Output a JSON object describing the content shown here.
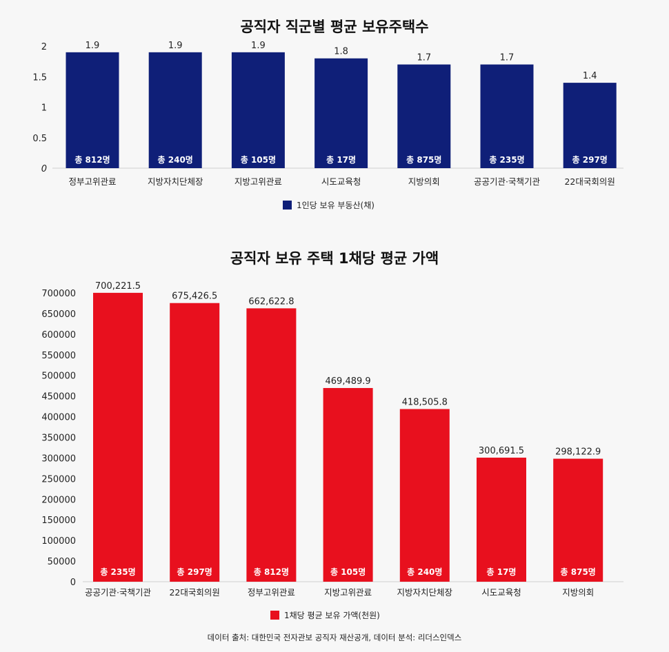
{
  "chart_data": [
    {
      "type": "bar",
      "title": "공직자 직군별 평균 보유주택수",
      "categories": [
        "정부고위관료",
        "지방자치단체장",
        "지방고위관료",
        "시도교육청",
        "지방의회",
        "공공기관·국책기관",
        "22대국회의원"
      ],
      "series": [
        {
          "name": "1인당 보유 부동산(채)",
          "values": [
            1.9,
            1.9,
            1.9,
            1.8,
            1.7,
            1.7,
            1.4
          ],
          "color": "#0f1f78"
        }
      ],
      "value_labels": [
        "1.9",
        "1.9",
        "1.9",
        "1.8",
        "1.7",
        "1.7",
        "1.4"
      ],
      "bar_labels": [
        "총 812명",
        "총 240명",
        "총 105명",
        "총 17명",
        "총 875명",
        "총 235명",
        "총 297명"
      ],
      "yticks": [
        "0",
        "0.5",
        "1",
        "1.5",
        "2"
      ],
      "ylim": [
        0,
        2
      ],
      "legend": "bottom-center",
      "grid": false
    },
    {
      "type": "bar",
      "title": "공직자 보유 주택 1채당 평균 가액",
      "categories": [
        "공공기관·국책기관",
        "22대국회의원",
        "정부고위관료",
        "지방고위관료",
        "지방자치단체장",
        "시도교육청",
        "지방의회"
      ],
      "series": [
        {
          "name": "1채당 평균 보유 가액(천원)",
          "values": [
            700221.5,
            675426.5,
            662622.8,
            469489.9,
            418505.8,
            300691.5,
            298122.9
          ],
          "color": "#e8101e"
        }
      ],
      "value_labels": [
        "700,221.5",
        "675,426.5",
        "662,622.8",
        "469,489.9",
        "418,505.8",
        "300,691.5",
        "298,122.9"
      ],
      "bar_labels": [
        "총 235명",
        "총 297명",
        "총 812명",
        "총 105명",
        "총 240명",
        "총 17명",
        "총 875명"
      ],
      "yticks": [
        "0",
        "50000",
        "100000",
        "150000",
        "200000",
        "250000",
        "300000",
        "350000",
        "400000",
        "450000",
        "500000",
        "550000",
        "600000",
        "650000",
        "700000"
      ],
      "ylim": [
        0,
        700000
      ],
      "legend": "bottom-center",
      "grid": false
    }
  ],
  "source": "데이터 출처: 대한민국 전자관보 공직자 재산공개, 데이터 분석: 리더스인덱스"
}
